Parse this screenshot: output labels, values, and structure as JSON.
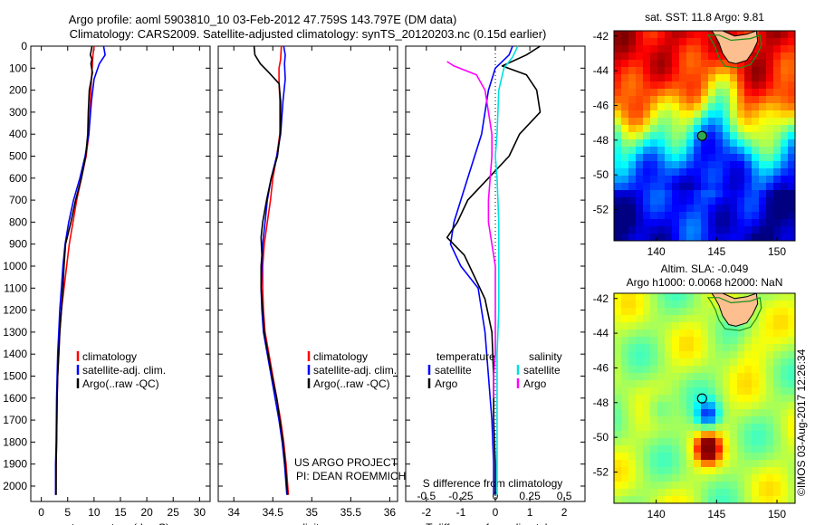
{
  "title_line1": "Argo profile: aoml 5903810_10 03-Feb-2012 47.759S 143.797E (DM data)",
  "title_line2": "Climatology: CARS2009. Satellite-adjusted climatology: synTS_20120203.nc (0.15d earlier)",
  "timestamp": "©IMOS 03-Aug-2017 12:26:34",
  "project_line1": "US ARGO PROJECT",
  "project_line2": "PI: DEAN ROEMMICH",
  "colors": {
    "climatology": "#ff0000",
    "satellite": "#0000ff",
    "argo": "#000000",
    "sat_salinity": "#00e0e0",
    "argo_salinity": "#ff00ff",
    "coast": "#fdbf8f",
    "coast_outline": "#1a8f1a"
  },
  "chart_data": [
    {
      "type": "line",
      "name": "temperature-profile",
      "xlabel": "temperature (deg C)",
      "ylabel": "",
      "xlim": [
        -2,
        32
      ],
      "ylim": [
        2070,
        0
      ],
      "xticks": [
        0,
        5,
        10,
        15,
        20,
        25,
        30
      ],
      "yticks": [
        0,
        100,
        200,
        300,
        400,
        500,
        600,
        700,
        800,
        900,
        1000,
        1100,
        1200,
        1300,
        1400,
        1500,
        1600,
        1700,
        1800,
        1900,
        2000
      ],
      "legend": [
        "climatology",
        "satellite-adj. clim.",
        "Argo(..raw -QC)"
      ],
      "legend_position": "lower-middle",
      "series": [
        {
          "name": "climatology",
          "color": "#ff0000",
          "points": [
            [
              10,
              0
            ],
            [
              9.8,
              40
            ],
            [
              9.7,
              80
            ],
            [
              9.5,
              150
            ],
            [
              9.3,
              250
            ],
            [
              9,
              400
            ],
            [
              8.5,
              500
            ],
            [
              7.6,
              600
            ],
            [
              6.7,
              700
            ],
            [
              6,
              800
            ],
            [
              5.3,
              900
            ],
            [
              4.8,
              1000
            ],
            [
              4.3,
              1100
            ],
            [
              3.8,
              1200
            ],
            [
              3.5,
              1300
            ],
            [
              3.3,
              1400
            ],
            [
              3.1,
              1500
            ],
            [
              3,
              1600
            ],
            [
              2.9,
              1800
            ],
            [
              2.8,
              1900
            ],
            [
              2.75,
              2040
            ]
          ]
        },
        {
          "name": "satellite-adj. clim.",
          "color": "#0000ff",
          "points": [
            [
              11.8,
              0
            ],
            [
              12.1,
              40
            ],
            [
              11,
              80
            ],
            [
              10,
              150
            ],
            [
              9.5,
              250
            ],
            [
              9,
              400
            ],
            [
              8.3,
              500
            ],
            [
              7.3,
              600
            ],
            [
              6.1,
              700
            ],
            [
              5.2,
              800
            ],
            [
              4.5,
              900
            ],
            [
              4.1,
              1000
            ],
            [
              3.8,
              1100
            ],
            [
              3.5,
              1200
            ],
            [
              3.3,
              1300
            ],
            [
              3.1,
              1400
            ],
            [
              3,
              1500
            ],
            [
              2.9,
              1600
            ],
            [
              2.8,
              1800
            ],
            [
              2.7,
              1900
            ],
            [
              2.7,
              2040
            ]
          ]
        },
        {
          "name": "Argo(..raw -QC)",
          "color": "#000000",
          "points": [
            [
              9.6,
              0
            ],
            [
              9.3,
              40
            ],
            [
              9.6,
              60
            ],
            [
              9.4,
              80
            ],
            [
              9.7,
              120
            ],
            [
              9.1,
              200
            ],
            [
              8.9,
              300
            ],
            [
              8.8,
              400
            ],
            [
              8.4,
              500
            ],
            [
              7.6,
              600
            ],
            [
              6.5,
              700
            ],
            [
              5.6,
              800
            ],
            [
              4.9,
              870
            ],
            [
              4.6,
              900
            ],
            [
              4.3,
              1000
            ],
            [
              4.1,
              1100
            ],
            [
              3.8,
              1200
            ],
            [
              3.5,
              1300
            ],
            [
              3.3,
              1400
            ],
            [
              3.1,
              1500
            ],
            [
              3,
              1600
            ],
            [
              2.9,
              1800
            ],
            [
              2.8,
              1900
            ],
            [
              2.8,
              2040
            ]
          ]
        }
      ]
    },
    {
      "type": "line",
      "name": "salinity-profile",
      "xlabel": "salinity",
      "ylabel": "",
      "xlim": [
        33.8,
        36.1
      ],
      "ylim": [
        2070,
        0
      ],
      "xticks": [
        34,
        34.5,
        35,
        35.5,
        36
      ],
      "legend": [
        "climatology",
        "satellite-adj. clim.",
        "Argo(..raw -QC)"
      ],
      "legend_position": "lower-right",
      "series": [
        {
          "name": "climatology",
          "color": "#ff0000",
          "points": [
            [
              34.61,
              0
            ],
            [
              34.6,
              60
            ],
            [
              34.58,
              100
            ],
            [
              34.58,
              150
            ],
            [
              34.59,
              250
            ],
            [
              34.59,
              400
            ],
            [
              34.55,
              500
            ],
            [
              34.5,
              600
            ],
            [
              34.47,
              700
            ],
            [
              34.43,
              800
            ],
            [
              34.39,
              900
            ],
            [
              34.37,
              1000
            ],
            [
              34.37,
              1100
            ],
            [
              34.38,
              1200
            ],
            [
              34.4,
              1300
            ],
            [
              34.45,
              1400
            ],
            [
              34.5,
              1500
            ],
            [
              34.55,
              1600
            ],
            [
              34.6,
              1700
            ],
            [
              34.64,
              1800
            ],
            [
              34.67,
              1900
            ],
            [
              34.7,
              2040
            ]
          ]
        },
        {
          "name": "satellite-adj. clim.",
          "color": "#0000ff",
          "points": [
            [
              34.64,
              0
            ],
            [
              34.66,
              40
            ],
            [
              34.65,
              80
            ],
            [
              34.66,
              150
            ],
            [
              34.63,
              250
            ],
            [
              34.6,
              400
            ],
            [
              34.55,
              500
            ],
            [
              34.48,
              600
            ],
            [
              34.43,
              700
            ],
            [
              34.4,
              800
            ],
            [
              34.37,
              900
            ],
            [
              34.36,
              1000
            ],
            [
              34.35,
              1100
            ],
            [
              34.36,
              1200
            ],
            [
              34.38,
              1300
            ],
            [
              34.43,
              1400
            ],
            [
              34.48,
              1500
            ],
            [
              34.53,
              1600
            ],
            [
              34.58,
              1700
            ],
            [
              34.62,
              1800
            ],
            [
              34.65,
              1900
            ],
            [
              34.68,
              2040
            ]
          ]
        },
        {
          "name": "Argo(..raw -QC)",
          "color": "#000000",
          "points": [
            [
              34.26,
              0
            ],
            [
              34.27,
              40
            ],
            [
              34.34,
              80
            ],
            [
              34.45,
              120
            ],
            [
              34.58,
              170
            ],
            [
              34.6,
              250
            ],
            [
              34.6,
              380
            ],
            [
              34.56,
              500
            ],
            [
              34.48,
              600
            ],
            [
              34.42,
              700
            ],
            [
              34.37,
              800
            ],
            [
              34.35,
              870
            ],
            [
              34.36,
              950
            ],
            [
              34.35,
              1000
            ],
            [
              34.35,
              1100
            ],
            [
              34.37,
              1200
            ],
            [
              34.39,
              1300
            ],
            [
              34.44,
              1400
            ],
            [
              34.49,
              1500
            ],
            [
              34.55,
              1600
            ],
            [
              34.59,
              1700
            ],
            [
              34.63,
              1800
            ],
            [
              34.66,
              1900
            ],
            [
              34.69,
              2040
            ]
          ]
        }
      ]
    },
    {
      "type": "line",
      "name": "difference-profile",
      "xlabel": "T difference from climatology",
      "top_xlabel": "S difference from climatology",
      "ylabel": "",
      "xlim": [
        -2.6,
        2.6
      ],
      "ylim": [
        2070,
        0
      ],
      "xticks": [
        -2,
        -1,
        0,
        1,
        2
      ],
      "top_tick_labels": [
        "-0.5",
        "-0.25",
        "0",
        "0.25",
        "0.5"
      ],
      "legend": {
        "temperature_heading": "temperature",
        "salinity_heading": "salinity",
        "satellite_label": "satellite",
        "argo_label": "Argo"
      },
      "legend_position": "lower-middle",
      "series": [
        {
          "name": "temperature satellite",
          "color": "#0000ff",
          "points": [
            [
              0.5,
              0
            ],
            [
              0.4,
              40
            ],
            [
              0,
              100
            ],
            [
              -0.2,
              200
            ],
            [
              -0.4,
              400
            ],
            [
              -0.8,
              600
            ],
            [
              -1.2,
              800
            ],
            [
              -1.3,
              900
            ],
            [
              -1,
              1000
            ],
            [
              -0.5,
              1100
            ],
            [
              -0.4,
              1200
            ],
            [
              -0.3,
              1300
            ],
            [
              -0.2,
              1500
            ],
            [
              -0.1,
              1700
            ],
            [
              -0.05,
              1900
            ],
            [
              -0.05,
              2040
            ]
          ]
        },
        {
          "name": "temperature Argo",
          "color": "#000000",
          "points": [
            [
              1.3,
              0
            ],
            [
              0.9,
              40
            ],
            [
              0.2,
              90
            ],
            [
              0.9,
              130
            ],
            [
              1.2,
              200
            ],
            [
              1.3,
              300
            ],
            [
              0.7,
              400
            ],
            [
              0.4,
              500
            ],
            [
              -0.2,
              600
            ],
            [
              -0.8,
              700
            ],
            [
              -1.1,
              800
            ],
            [
              -1.4,
              870
            ],
            [
              -0.9,
              950
            ],
            [
              -0.6,
              1050
            ],
            [
              -0.3,
              1150
            ],
            [
              -0.1,
              1300
            ],
            [
              -0.05,
              1500
            ],
            [
              -0.05,
              1700
            ],
            [
              0,
              1900
            ],
            [
              0,
              2040
            ]
          ]
        },
        {
          "name": "salinity satellite",
          "color": "#00e0e0",
          "points": [
            [
              0.65,
              0
            ],
            [
              0.5,
              50
            ],
            [
              0.25,
              100
            ],
            [
              0.1,
              200
            ],
            [
              0.05,
              400
            ],
            [
              0,
              500
            ],
            [
              0.05,
              600
            ],
            [
              0.1,
              800
            ],
            [
              0.1,
              1000
            ],
            [
              0.1,
              1200
            ],
            [
              0.05,
              1400
            ],
            [
              0.05,
              1600
            ],
            [
              0.05,
              1800
            ],
            [
              0.05,
              2040
            ]
          ]
        },
        {
          "name": "salinity Argo",
          "color": "#ff00ff",
          "points": [
            [
              -1.4,
              70
            ],
            [
              -1.2,
              90
            ],
            [
              -0.55,
              130
            ],
            [
              -0.3,
              200
            ],
            [
              -0.2,
              300
            ],
            [
              -0.1,
              400
            ],
            [
              -0.1,
              500
            ],
            [
              -0.15,
              600
            ],
            [
              -0.2,
              700
            ],
            [
              -0.2,
              800
            ],
            [
              0,
              1000
            ],
            [
              0,
              1200
            ],
            [
              0,
              1400
            ],
            [
              -0.05,
              1500
            ],
            [
              -0.05,
              1600
            ]
          ]
        }
      ]
    },
    {
      "type": "heatmap",
      "name": "sst-map",
      "title": "sat. SST: 11.8 Argo: 9.81",
      "xlim": [
        136.5,
        151.5
      ],
      "ylim": [
        -53.8,
        -41.7
      ],
      "xticks": [
        140,
        145,
        150
      ],
      "yticks": [
        -42,
        -44,
        -46,
        -48,
        -50,
        -52
      ],
      "argo_position": {
        "lon": 143.797,
        "lat": -47.759
      }
    },
    {
      "type": "heatmap",
      "name": "sla-map",
      "title_line1": "Altim. SLA: -0.049",
      "title_line2": "Argo h1000: 0.0068 h2000: NaN",
      "xlim": [
        136.5,
        151.5
      ],
      "ylim": [
        -53.8,
        -41.7
      ],
      "xticks": [
        140,
        145,
        150
      ],
      "yticks": [
        -42,
        -44,
        -46,
        -48,
        -50,
        -52
      ],
      "argo_position": {
        "lon": 143.797,
        "lat": -47.759
      }
    }
  ]
}
